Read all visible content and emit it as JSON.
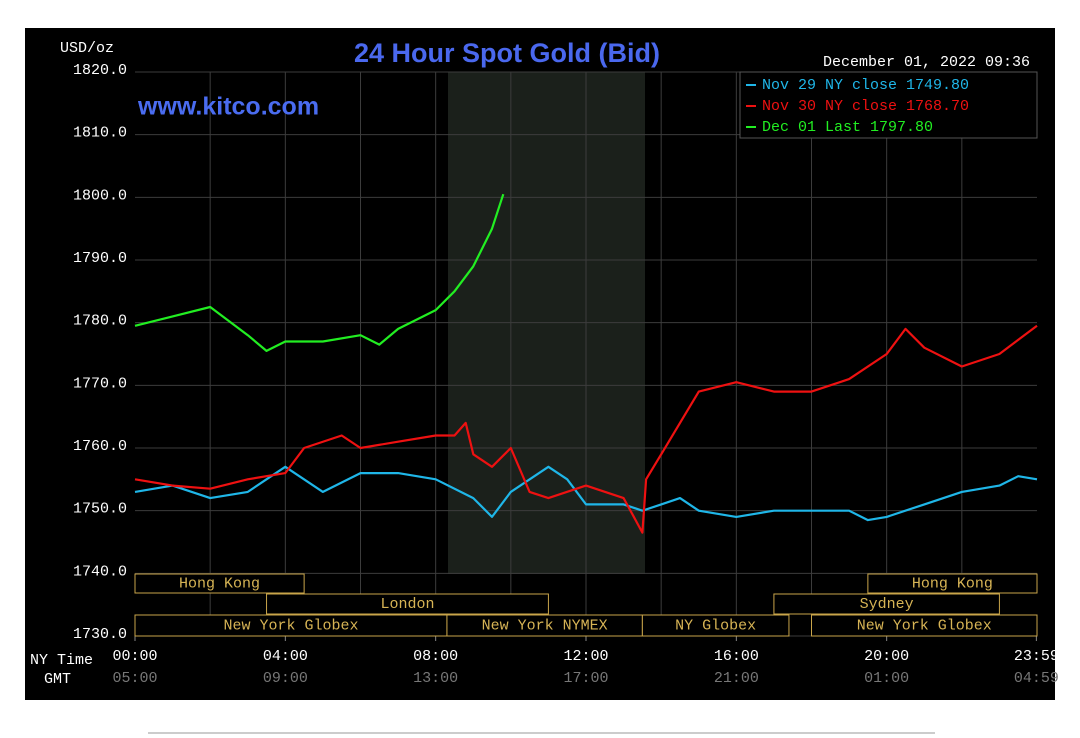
{
  "chart_data": {
    "type": "line",
    "title": "24 Hour Spot Gold (Bid)",
    "unit": "USD/oz",
    "watermark": "www.kitco.com",
    "timestamp": "December 01, 2022 09:36",
    "x_axis_label": "NY Time",
    "x2_axis_label": "GMT",
    "xlim": [
      0,
      24
    ],
    "xticks": [
      {
        "value": 0,
        "label": "00:00"
      },
      {
        "value": 4,
        "label": "04:00"
      },
      {
        "value": 8,
        "label": "08:00"
      },
      {
        "value": 12,
        "label": "12:00"
      },
      {
        "value": 16,
        "label": "16:00"
      },
      {
        "value": 20,
        "label": "20:00"
      },
      {
        "value": 23.983,
        "label": "23:59"
      }
    ],
    "x2ticks": [
      "05:00",
      "09:00",
      "13:00",
      "17:00",
      "21:00",
      "01:00",
      "04:59"
    ],
    "xgrid": [
      2,
      4,
      6,
      8,
      10,
      12,
      14,
      16,
      18,
      20,
      22
    ],
    "ylim": [
      1730,
      1820
    ],
    "yticks": [
      {
        "value": 1730,
        "label": "1730.0"
      },
      {
        "value": 1740,
        "label": "1740.0"
      },
      {
        "value": 1750,
        "label": "1750.0"
      },
      {
        "value": 1760,
        "label": "1760.0"
      },
      {
        "value": 1770,
        "label": "1770.0"
      },
      {
        "value": 1780,
        "label": "1780.0"
      },
      {
        "value": 1790,
        "label": "1790.0"
      },
      {
        "value": 1800,
        "label": "1800.0"
      },
      {
        "value": 1810,
        "label": "1810.0"
      },
      {
        "value": {
          "value": 1820,
          "label": "1820.0"
        }
      }
    ],
    "grid": true,
    "series": [
      {
        "name": "Nov 29 NY close",
        "legend_value": {
          "value": 1749.8,
          "label": "1749.80"
        },
        "color": "#1fb6e8",
        "x": [
          0,
          1,
          2,
          3,
          3.5,
          4,
          5,
          6,
          7,
          8,
          9,
          9.5,
          10,
          11,
          11.5,
          12,
          13,
          13.5,
          14,
          14.5,
          15,
          16,
          17,
          18,
          19,
          19.5,
          20,
          21,
          22,
          23,
          23.5,
          24
        ],
        "values": [
          1753,
          1754,
          1752,
          1753,
          1755,
          1757,
          1753,
          1756,
          1756,
          1755,
          1752,
          1749,
          1753,
          1757,
          1755,
          1751,
          1751,
          1750,
          1751,
          1752,
          1750,
          1749,
          1750,
          1750,
          1750,
          1748.5,
          1749,
          1751,
          1753,
          1754,
          1755.5,
          1755
        ]
      },
      {
        "name": "Nov 30 NY close",
        "legend_value": {
          "value": 1768.7,
          "label": "1768.70"
        },
        "color": "#ee1111",
        "x": [
          0,
          1,
          2,
          3,
          4,
          4.5,
          5.5,
          6,
          7,
          8,
          8.5,
          8.8,
          9,
          9.5,
          10,
          10.5,
          11,
          12,
          13,
          13.5,
          13.6,
          14,
          14.5,
          15,
          16,
          17,
          18,
          19,
          20,
          20.5,
          21,
          22,
          23,
          24
        ],
        "values": [
          1755,
          1754,
          1753.5,
          1755,
          1756,
          1760,
          1762,
          1760,
          1761,
          1762,
          1762,
          1764,
          1759,
          1757,
          1760,
          1753,
          1752,
          1754,
          1752,
          1746.5,
          1755,
          1759,
          1764,
          1769,
          1770.5,
          1769,
          1769,
          1771,
          1775,
          1779,
          1776,
          1773,
          1775,
          1779.5
        ]
      },
      {
        "name": "Dec 01 Last",
        "legend_value": {
          "value": 1797.8,
          "label": "1797.80"
        },
        "color": "#22ee22",
        "x": [
          0,
          1,
          2,
          3,
          3.5,
          4,
          5,
          6,
          6.5,
          7,
          8,
          8.5,
          9,
          9.5,
          9.8
        ],
        "values": [
          1779.5,
          1781,
          1782.5,
          1778,
          1775.5,
          1777,
          1777,
          1778,
          1776.5,
          1779,
          1782,
          1785,
          1789,
          1795,
          1800.5
        ]
      }
    ],
    "session_rows": [
      [
        {
          "name": "Hong Kong",
          "start": 0,
          "end": 4.5
        },
        {
          "name": "Hong Kong",
          "start": 19.5,
          "end": 24
        }
      ],
      [
        {
          "name": "London",
          "start": 3.5,
          "end": 11
        },
        {
          "name": "Sydney",
          "start": 17,
          "end": 23
        }
      ],
      [
        {
          "name": "New York Globex",
          "start": 0,
          "end": 8.3
        },
        {
          "name": "New York NYMEX",
          "start": 8.3,
          "end": 13.5
        },
        {
          "name": "NY Globex",
          "start": 13.5,
          "end": 17.4
        },
        {
          "name": "New York Globex",
          "start": 18,
          "end": 24
        }
      ]
    ]
  }
}
